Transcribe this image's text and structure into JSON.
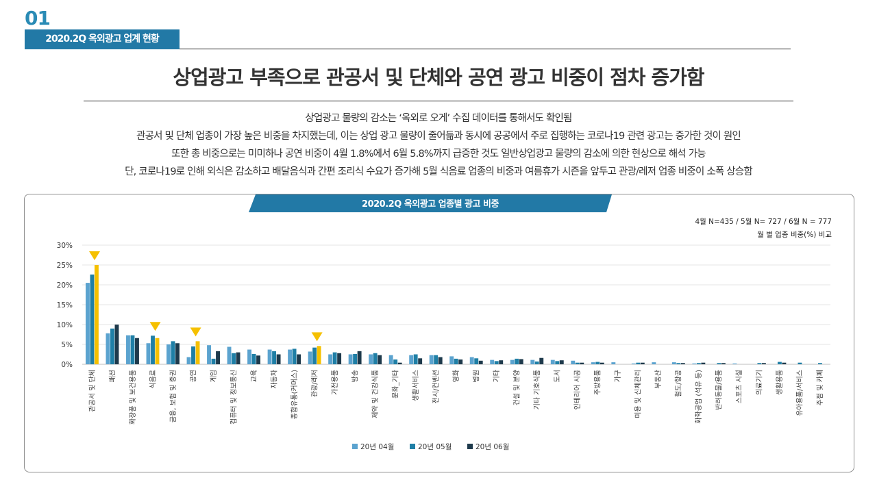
{
  "header": {
    "section_number": "01",
    "section_tag": "2020.2Q 옥외광고 업계 현황",
    "headline": "상업광고 부족으로 관공서 및 단체와 공연 광고 비중이 점차 증가함"
  },
  "summary": {
    "lines": [
      "상업광고 물량의 감소는 ‘옥외로 오게’ 수집 데이터를 통해서도 확인됨",
      "관공서 및 단체 업종이 가장 높은 비중을 차지했는데, 이는 상업 광고 물량이 줄어듦과 동시에 공공에서 주로 집행하는 코로나19 관련 광고는 증가한 것이 원인",
      "또한 총 비중으로는 미미하나 공연 비중이 4월 1.8%에서 6월 5.8%까지 급증한 것도 일반상업광고 물량의 감소에 의한 현상으로 해석 가능",
      "단, 코로나19로 인해 외식은 감소하고 배달음식과 간편 조리식 수요가 증가해 5월 식음료 업종의 비중과 여름휴가 시즌을 앞두고 관광/레저 업종 비중이 소폭 상승함"
    ]
  },
  "chart_data": {
    "type": "bar",
    "title": "2020.2Q 옥외광고 업종별 광고 비중",
    "note_sample": "4월 N=435 / 5월 N= 727 / 6월 N = 777",
    "note_compare": "월 별 업종 비중(%) 비교",
    "ylim": [
      0,
      30
    ],
    "yticks": [
      "0%",
      "5%",
      "10%",
      "15%",
      "20%",
      "25%",
      "30%"
    ],
    "grid": true,
    "legend_position": "bottom",
    "categories": [
      "관공서 및 단체",
      "패션",
      "화장품 및 보건용품",
      "식음료",
      "금융, 보험 및 증권",
      "공연",
      "게임",
      "컴퓨터 및 정보통신",
      "교육",
      "자동차",
      "종합유통(커머스)",
      "관광/레저",
      "가전용품",
      "방송",
      "제약 및 건강식품",
      "문화_기타",
      "생활서비스",
      "전시/컨벤션",
      "영화",
      "병원",
      "기타",
      "건설 및 분양",
      "기타 기호식품",
      "도서",
      "인테리어 시공",
      "주방용품",
      "가구",
      "미용 및 신체관리",
      "부동산",
      "철도/항공",
      "화학공업 (석유 등)",
      "반려동물/용품",
      "스포츠 시설",
      "의료기기",
      "생활용품",
      "유아용품/서비스",
      "주점 및 카페"
    ],
    "highlight_categories": [
      "관공서 및 단체",
      "식음료",
      "공연",
      "관광/레저"
    ],
    "series": [
      {
        "name": "20년 04월",
        "color": "#5ba3cf",
        "values": [
          20.5,
          7.8,
          7.3,
          5.3,
          5.0,
          1.8,
          4.8,
          4.4,
          3.7,
          3.7,
          3.7,
          3.2,
          2.5,
          2.5,
          2.5,
          2.3,
          2.3,
          2.3,
          2.0,
          1.8,
          1.1,
          1.1,
          1.1,
          1.1,
          0.9,
          0.5,
          0.5,
          0.2,
          0.5,
          0.5,
          0.2,
          0.0,
          0.2,
          0.0,
          0.0,
          0.0,
          0.0
        ]
      },
      {
        "name": "20년 05월",
        "color": "#1f7fa6",
        "values": [
          22.6,
          9.0,
          7.3,
          7.2,
          5.8,
          4.5,
          1.4,
          2.8,
          2.6,
          3.3,
          3.9,
          4.2,
          3.0,
          2.6,
          2.8,
          1.2,
          2.5,
          2.3,
          1.4,
          1.5,
          0.8,
          1.4,
          0.7,
          0.8,
          0.4,
          0.6,
          0.0,
          0.4,
          0.0,
          0.3,
          0.3,
          0.3,
          0.0,
          0.3,
          0.6,
          0.4,
          0.3
        ]
      },
      {
        "name": "20년 06월",
        "color": "#1e3a4c",
        "values": [
          25.0,
          10.0,
          6.6,
          6.6,
          5.3,
          5.8,
          3.3,
          3.0,
          2.2,
          2.5,
          2.5,
          4.6,
          2.8,
          3.3,
          2.3,
          0.4,
          1.5,
          1.8,
          1.2,
          0.9,
          1.0,
          1.3,
          1.6,
          1.0,
          0.4,
          0.4,
          0.0,
          0.4,
          0.0,
          0.3,
          0.4,
          0.3,
          0.0,
          0.3,
          0.4,
          0.0,
          0.0
        ]
      }
    ],
    "highlight_color": "#f5c000"
  }
}
